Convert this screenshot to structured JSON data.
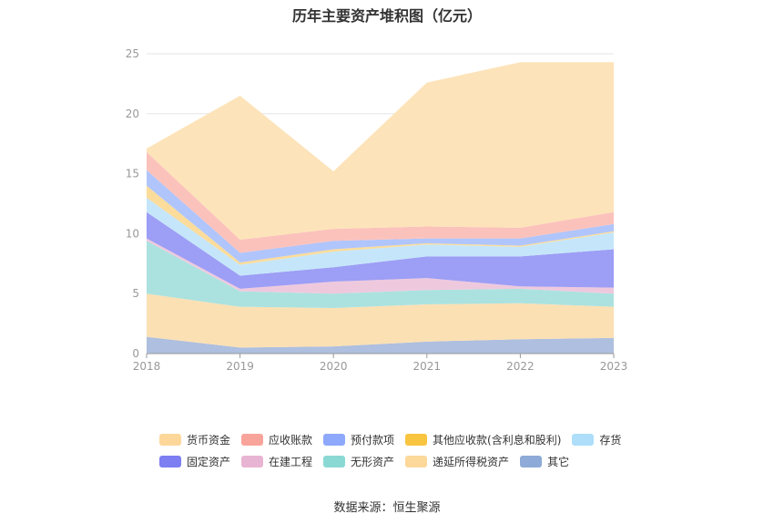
{
  "title": "历年主要资产堆积图（亿元）",
  "source": "数据来源：恒生聚源",
  "chart_data": {
    "type": "area",
    "stacked": true,
    "categories": [
      "2018",
      "2019",
      "2020",
      "2021",
      "2022",
      "2023"
    ],
    "ylim": [
      0,
      25
    ],
    "yticks": [
      "0",
      "5",
      "10",
      "15",
      "20",
      "25"
    ],
    "grid": true,
    "legend_position": "bottom",
    "series": [
      {
        "name": "其它",
        "color": "#aebfdf",
        "values": [
          1.4,
          0.5,
          0.6,
          1.0,
          1.2,
          1.3
        ]
      },
      {
        "name": "递延所得税资产",
        "color": "#fbe0b4",
        "values": [
          3.6,
          3.4,
          3.2,
          3.1,
          3.0,
          2.6
        ]
      },
      {
        "name": "无形资产",
        "color": "#abe2df",
        "values": [
          4.4,
          1.3,
          1.2,
          1.2,
          1.2,
          1.1
        ]
      },
      {
        "name": "在建工程",
        "color": "#eec9de",
        "values": [
          0.2,
          0.2,
          1.0,
          1.0,
          0.2,
          0.5
        ]
      },
      {
        "name": "固定资产",
        "color": "#9d9ef5",
        "values": [
          2.2,
          1.1,
          1.2,
          1.8,
          2.5,
          3.2
        ]
      },
      {
        "name": "存货",
        "color": "#c5e6fa",
        "values": [
          1.2,
          0.9,
          1.3,
          1.0,
          0.8,
          1.4
        ]
      },
      {
        "name": "其他应收款(含利息和股利)",
        "color": "#fbdc9b",
        "values": [
          1.0,
          0.2,
          0.2,
          0.1,
          0.1,
          0.1
        ]
      },
      {
        "name": "预付款项",
        "color": "#b0c5fb",
        "values": [
          1.3,
          0.8,
          0.7,
          0.4,
          0.6,
          0.6
        ]
      },
      {
        "name": "应收账款",
        "color": "#fbc2bc",
        "values": [
          1.5,
          1.1,
          1.0,
          1.0,
          0.9,
          1.0
        ]
      },
      {
        "name": "货币资金",
        "color": "#fde3b9",
        "values": [
          0.3,
          12.0,
          4.8,
          12.0,
          13.8,
          12.5
        ]
      }
    ]
  },
  "legend": {
    "rows": [
      [
        {
          "name": "货币资金",
          "color": "#fdd79a"
        },
        {
          "name": "应收账款",
          "color": "#f9a49b"
        },
        {
          "name": "预付款项",
          "color": "#8ea9fb"
        },
        {
          "name": "其他应收款(含利息和股利)",
          "color": "#f9c440"
        },
        {
          "name": "存货",
          "color": "#aedefa"
        }
      ],
      [
        {
          "name": "固定资产",
          "color": "#7d7ef2"
        },
        {
          "name": "在建工程",
          "color": "#e8b4d3"
        },
        {
          "name": "无形资产",
          "color": "#8bd9d4"
        },
        {
          "name": "递延所得税资产",
          "color": "#fcd89a"
        },
        {
          "name": "其它",
          "color": "#8eaad6"
        }
      ]
    ]
  }
}
